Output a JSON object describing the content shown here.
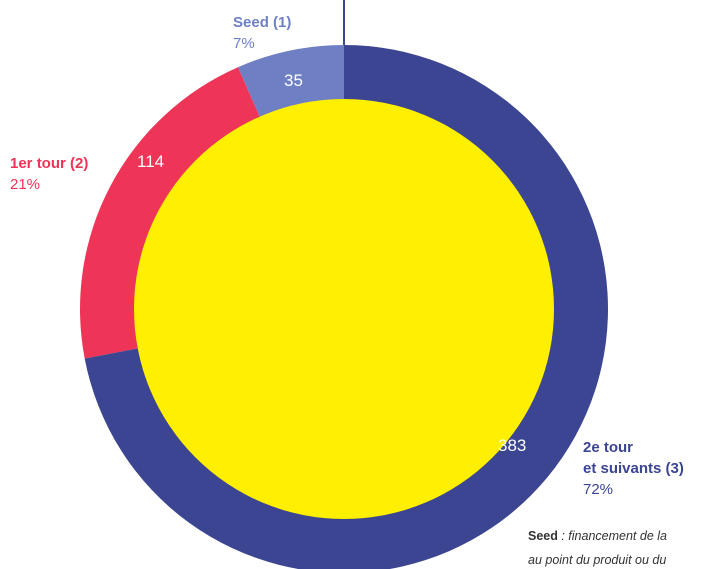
{
  "chart_data": {
    "type": "donut",
    "categories": [
      "Seed (1)",
      "1er tour (2)",
      "2e tour\net suivants (3)"
    ],
    "values": [
      35,
      114,
      383
    ],
    "shares": [
      "7%",
      "21%",
      "72%"
    ],
    "colors": [
      "#6e80c3",
      "#ee3457",
      "#3b4591"
    ],
    "center_color": "#ffef00",
    "footnote": {
      "term": "Seed",
      "text": " : financement de la",
      "line2": "au point du produit ou du"
    }
  }
}
